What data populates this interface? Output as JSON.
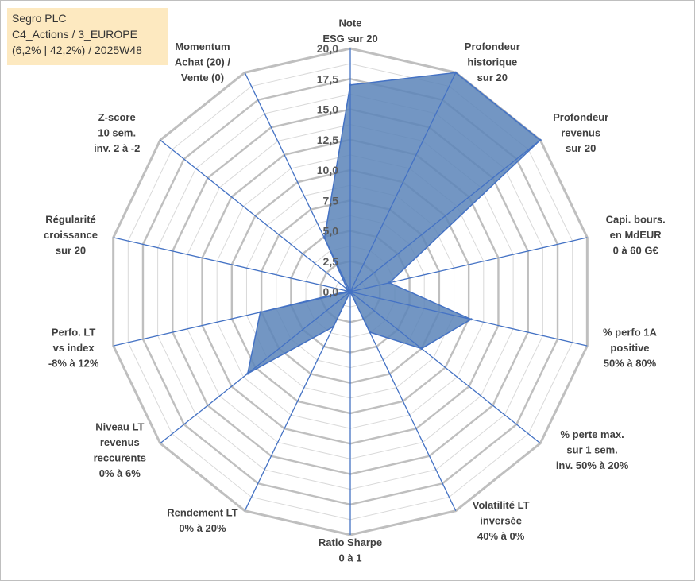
{
  "title_box": {
    "line1": "Segro PLC",
    "line2": "C4_Actions / 3_EUROPE",
    "line3": "(6,2% | 42,2%) / 2025W48"
  },
  "chart_data": {
    "type": "radar",
    "r_max": 20,
    "r_ticks": [
      "0,0",
      "2,5",
      "5,0",
      "7,5",
      "10,0",
      "12,5",
      "15,0",
      "17,5",
      "20,0"
    ],
    "grid": true,
    "axes": [
      {
        "lines": [
          "Note",
          "ESG sur 20"
        ]
      },
      {
        "lines": [
          "Profondeur",
          "historique",
          "sur 20"
        ]
      },
      {
        "lines": [
          "Profondeur",
          "revenus",
          "sur 20"
        ]
      },
      {
        "lines": [
          "Capi. bours.",
          "en MdEUR",
          "0 à 60 G€"
        ]
      },
      {
        "lines": [
          "% perfo 1A",
          "positive",
          "50% à 80%"
        ]
      },
      {
        "lines": [
          "% perte max.",
          "sur 1 sem.",
          "inv. 50% à 20%"
        ]
      },
      {
        "lines": [
          "Volatilité LT",
          "inversée",
          "40% à 0%"
        ]
      },
      {
        "lines": [
          "Ratio Sharpe",
          "0 à 1"
        ]
      },
      {
        "lines": [
          "Rendement LT",
          "0% à 20%"
        ]
      },
      {
        "lines": [
          "Niveau LT",
          "revenus",
          "reccurents",
          "0% à 6%"
        ]
      },
      {
        "lines": [
          "Perfo. LT",
          "vs index",
          "-8% à 12%"
        ]
      },
      {
        "lines": [
          "Régularité",
          "croissance",
          "sur 20"
        ]
      },
      {
        "lines": [
          "Z-score",
          "10 sem.",
          "inv. 2 à -2"
        ]
      },
      {
        "lines": [
          "Momentum",
          "Achat (20) /",
          "Vente (0)"
        ]
      }
    ],
    "values": [
      17.0,
      20.0,
      20.0,
      3.3,
      10.2,
      7.5,
      3.7,
      0.0,
      3.2,
      10.8,
      7.6,
      0.2,
      0.3,
      4.9
    ],
    "colors": {
      "fill": "#5b84b8",
      "stroke": "#4472c4",
      "spoke": "#4472c4",
      "grid_major": "#bfbfbf",
      "grid_minor": "#d9d9d9"
    }
  }
}
